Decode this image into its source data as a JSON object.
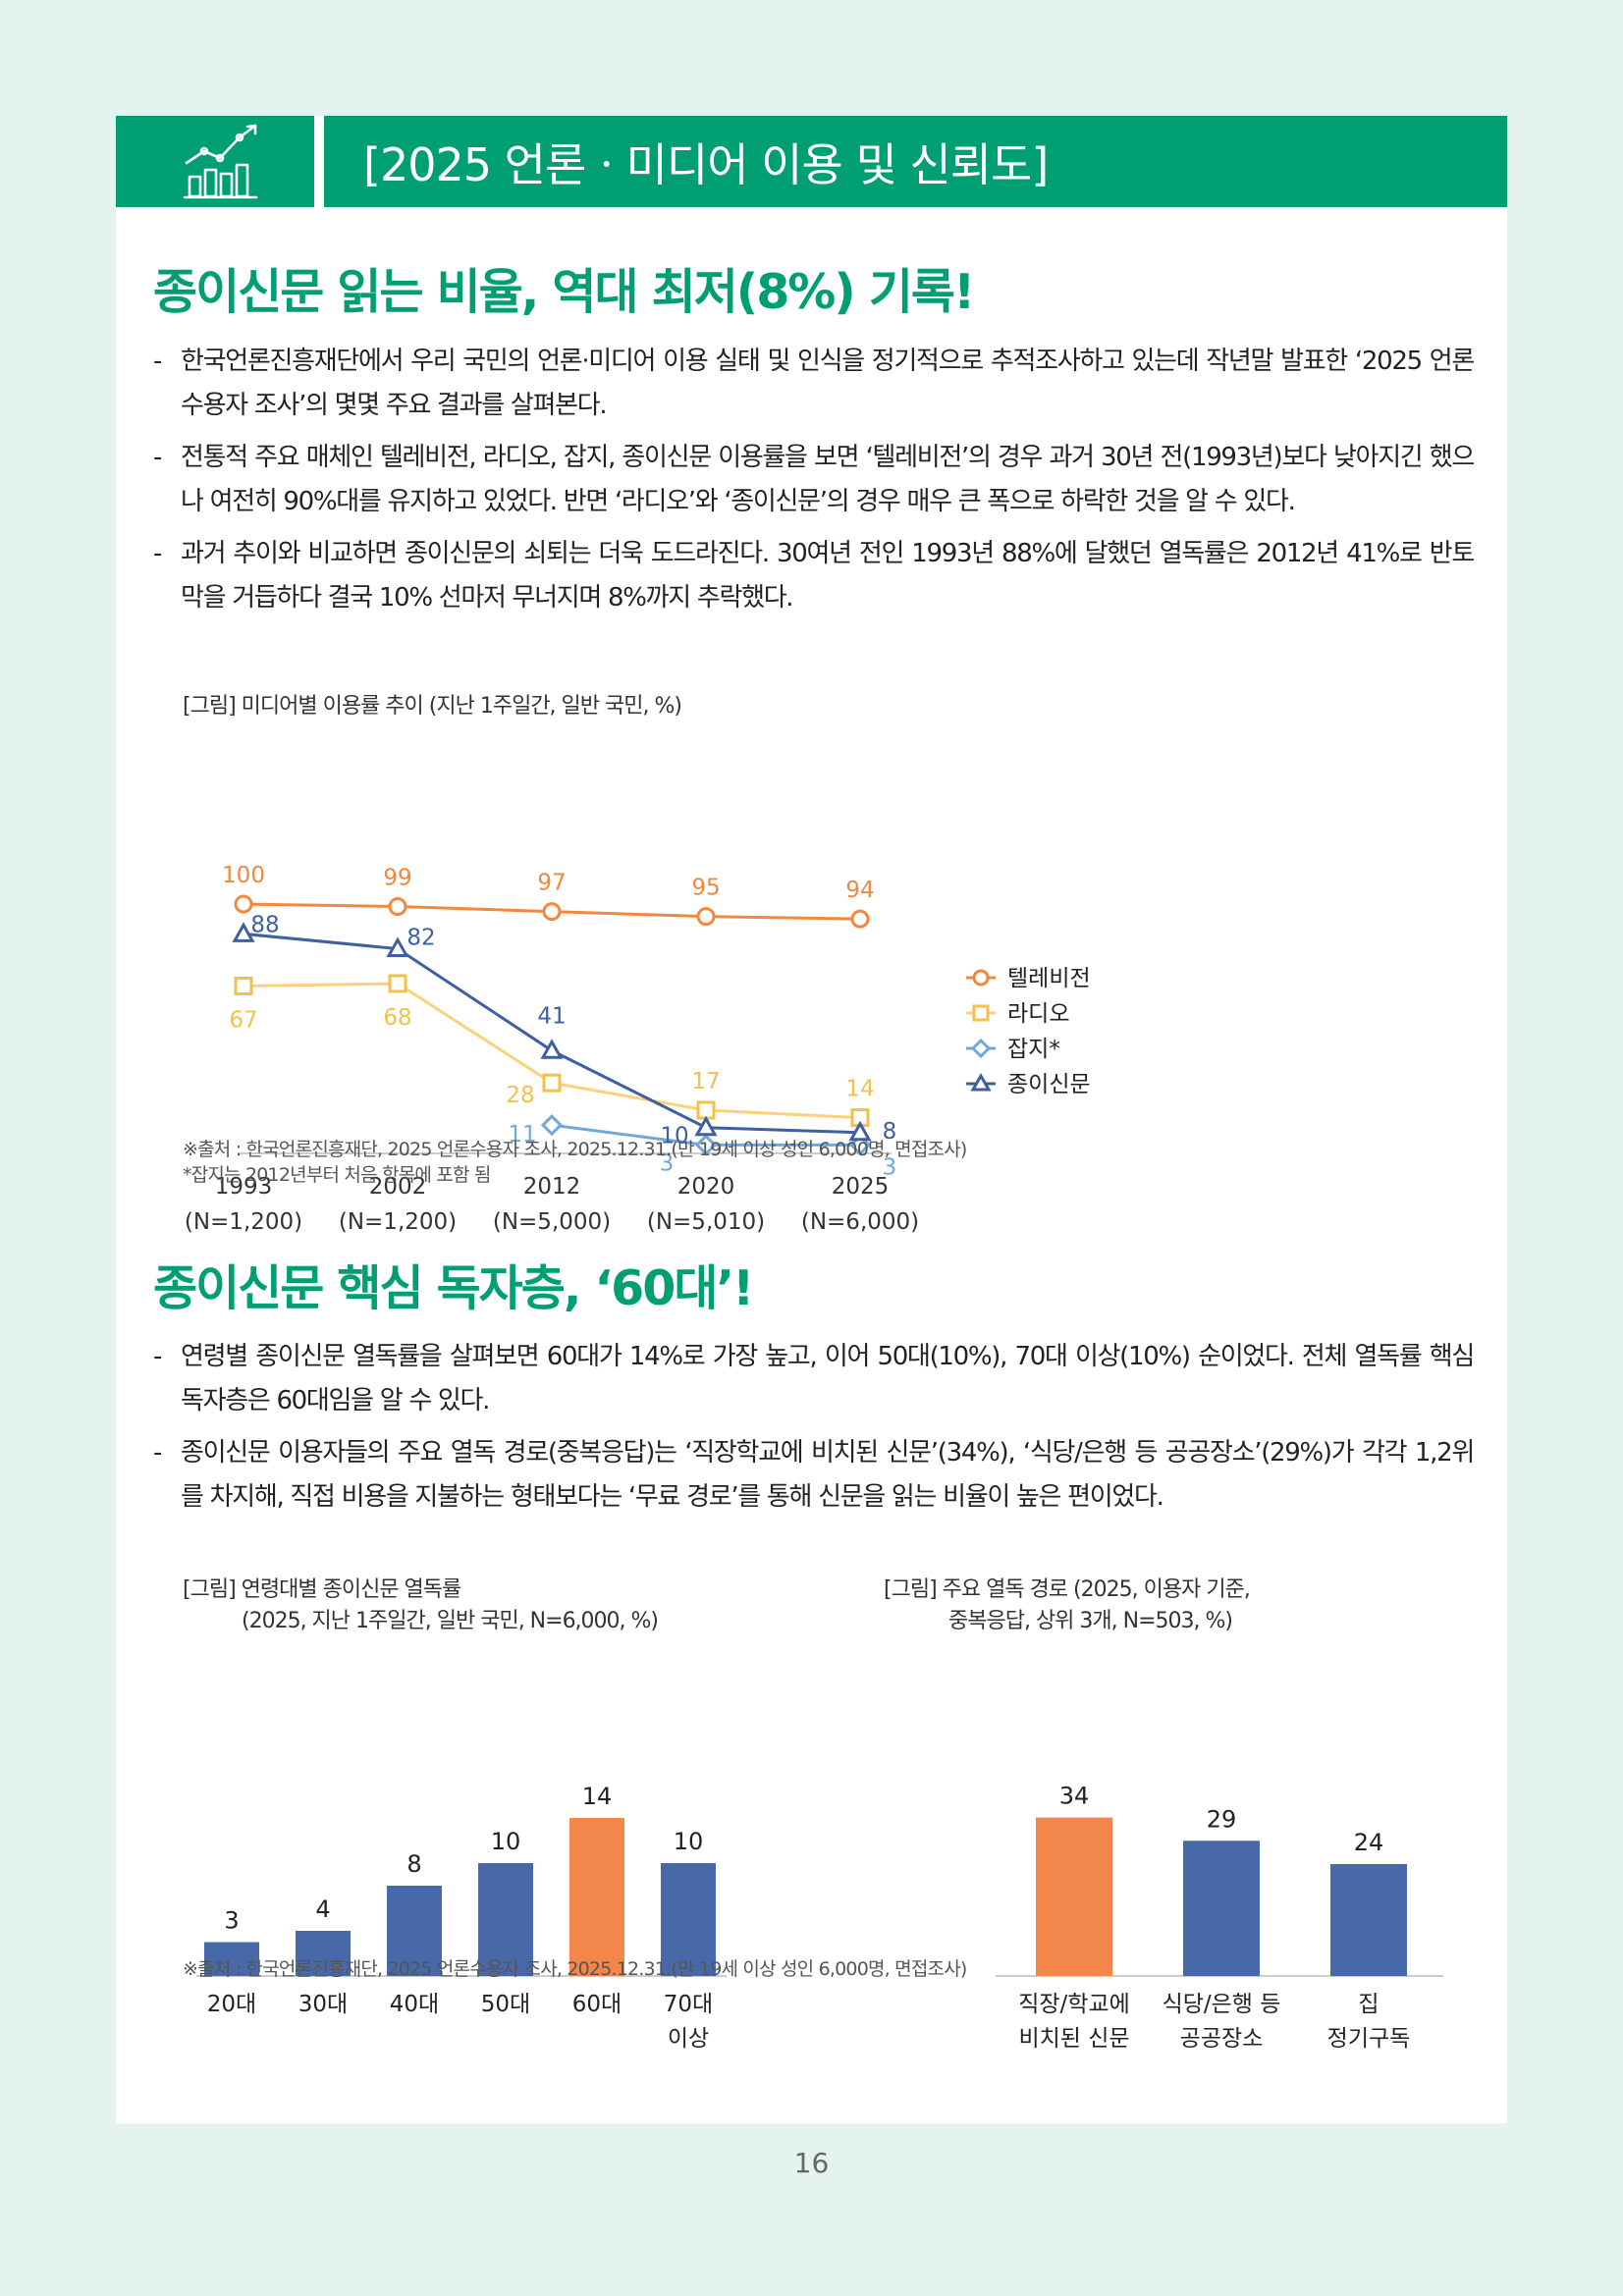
{
  "header": {
    "title": "[2025 언론ㆍ미디어 이용 및 신뢰도]",
    "icon": "bar-chart-trend-icon"
  },
  "sections": [
    {
      "title": "종이신문 읽는 비율, 역대 최저(8%) 기록!",
      "bullets": [
        "한국언론진흥재단에서 우리 국민의 언론·미디어 이용 실태 및 인식을 정기적으로 추적조사하고 있는데 작년말 발표한 ‘2025 언론수용자 조사’의 몇몇 주요 결과를 살펴본다.",
        "전통적 주요 매체인 텔레비전, 라디오, 잡지, 종이신문 이용률을 보면 ‘텔레비전’의 경우 과거 30년 전(1993년)보다 낮아지긴 했으나 여전히 90%대를 유지하고 있었다. 반면 ‘라디오’와 ‘종이신문’의 경우 매우 큰 폭으로 하락한 것을 알 수 있다.",
        "과거 추이와 비교하면 종이신문의 쇠퇴는 더욱 도드라진다. 30여년 전인 1993년 88%에 달했던 열독률은 2012년 41%로 반토막을 거듭하다 결국 10% 선마저 무너지며 8%까지 추락했다."
      ]
    },
    {
      "title": "종이신문 핵심 독자층, ‘60대’!",
      "bullets": [
        "연령별 종이신문 열독률을 살펴보면 60대가 14%로 가장 높고, 이어 50대(10%), 70대 이상(10%) 순이었다. 전체 열독률 핵심 독자층은 60대임을 알 수 있다.",
        "종이신문 이용자들의 주요 열독 경로(중복응답)는 ‘직장학교에 비치된 신문’(34%), ‘식당/은행 등 공공장소’(29%)가 각각 1,2위를 차지해, 직접 비용을 지불하는 형태보다는 ‘무료 경로’를 통해 신문을 읽는 비율이 높은 편이었다."
      ]
    }
  ],
  "figure1": {
    "caption": "[그림] 미디어별 이용률 추이 (지난 1주일간, 일반 국민, %)",
    "source": "※출처 : 한국언론진흥재단, 2025 언론수용자 조사, 2025.12.31.(만 19세 이상 성인 6,000명, 면접조사)",
    "note": "*잡지는 2012년부터 처음 항목에 포함 됨"
  },
  "figure2": {
    "caption_line1": "[그림] 연령대별 종이신문 열독률",
    "caption_line2": "(2025, 지난 1주일간, 일반 국민, N=6,000, %)"
  },
  "figure3": {
    "caption_line1": "[그림] 주요 열독 경로 (2025, 이용자 기준,",
    "caption_line2": "중복응답, 상위 3개, N=503, %)"
  },
  "source2": "※출처 : 한국언론진흥재단, 2025 언론수용자 조사, 2025.12.31.(만 19세 이상 성인 6,000명, 면접조사)",
  "page_number": "16",
  "colors": {
    "green": "#009e73",
    "tv": "#f0883e",
    "radio": "#fdd17a",
    "magazine": "#6fa8dc",
    "newspaper": "#3f5f9e",
    "bar_blue": "#4769a8",
    "bar_orange": "#f3874b"
  },
  "chart_data": [
    {
      "type": "line",
      "categories": [
        "1993",
        "2002",
        "2012",
        "2020",
        "2025"
      ],
      "sublabels": [
        "(N=1,200)",
        "(N=1,200)",
        "(N=5,000)",
        "(N=5,010)",
        "(N=6,000)"
      ],
      "series": [
        {
          "name": "텔레비전",
          "values": [
            100,
            99,
            97,
            95,
            94
          ],
          "marker": "circle",
          "color": "#f0883e"
        },
        {
          "name": "라디오",
          "values": [
            67,
            68,
            28,
            17,
            14
          ],
          "marker": "square",
          "color": "#fdd17a"
        },
        {
          "name": "잡지*",
          "values": [
            null,
            null,
            11,
            3,
            3
          ],
          "marker": "diamond",
          "color": "#6fa8dc"
        },
        {
          "name": "종이신문",
          "values": [
            88,
            82,
            41,
            10,
            8
          ],
          "marker": "triangle",
          "color": "#3f5f9e"
        }
      ],
      "legend": "right",
      "ylim": [
        0,
        100
      ]
    },
    {
      "type": "bar",
      "categories": [
        "20대",
        "30대",
        "40대",
        "50대",
        "60대",
        "70대 이상"
      ],
      "category_lines": [
        [
          "20대"
        ],
        [
          "30대"
        ],
        [
          "40대"
        ],
        [
          "50대"
        ],
        [
          "60대"
        ],
        [
          "70대",
          "이상"
        ]
      ],
      "values": [
        3,
        4,
        8,
        10,
        14,
        10
      ],
      "highlight_index": 4,
      "ylim": [
        0,
        14
      ]
    },
    {
      "type": "bar",
      "categories": [
        "직장/학교에 비치된 신문",
        "식당/은행 등 공공장소",
        "집 정기구독"
      ],
      "category_lines": [
        [
          "직장/학교에",
          "비치된 신문"
        ],
        [
          "식당/은행 등",
          "공공장소"
        ],
        [
          "집",
          "정기구독"
        ]
      ],
      "values": [
        34,
        29,
        24
      ],
      "highlight_index": 0,
      "ylim": [
        0,
        34
      ]
    }
  ]
}
